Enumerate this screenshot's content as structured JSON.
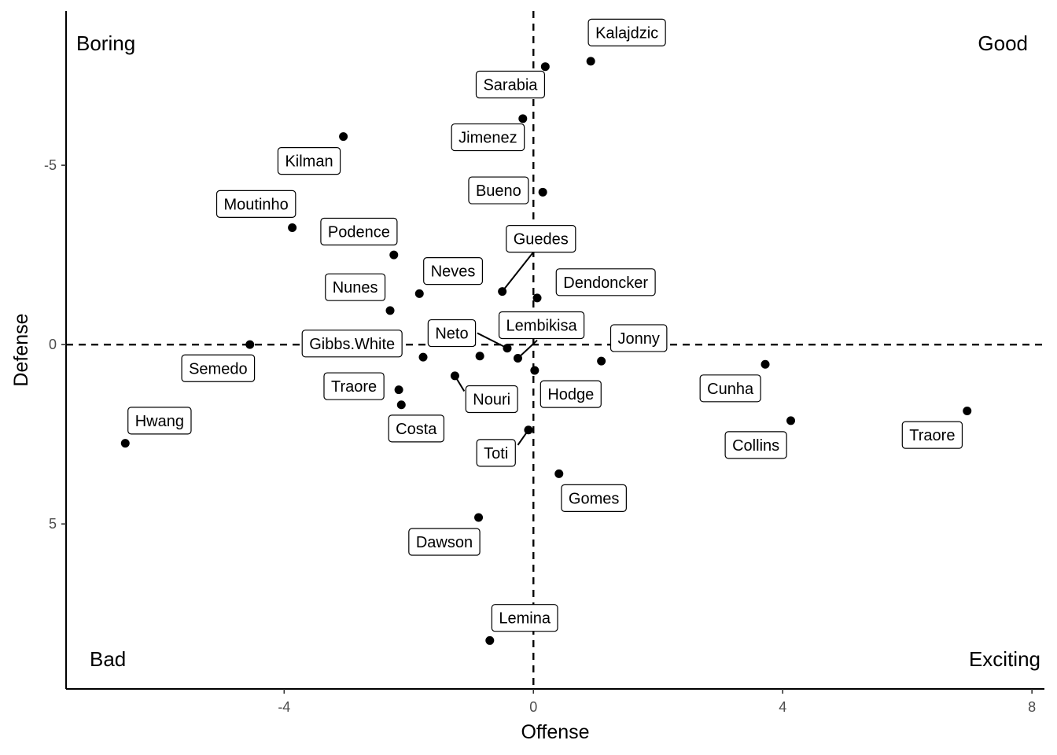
{
  "chart_data": {
    "type": "scatter",
    "title": "",
    "xlabel": "Offense",
    "ylabel": "Defense",
    "xlim": [
      -7.5,
      8.2
    ],
    "ylim": [
      -9.3,
      9.6
    ],
    "y_reversed": true,
    "x_ticks": [
      -4,
      0,
      4,
      8
    ],
    "x_tick_labels": [
      "-4",
      "0",
      "4",
      "8"
    ],
    "y_ticks": [
      -5,
      0,
      5
    ],
    "y_tick_labels": [
      "-5",
      "0",
      "5"
    ],
    "reference_lines": {
      "x": 0,
      "y": 0
    },
    "grid": false,
    "quadrant_labels": {
      "top_left": "Boring",
      "top_right": "Good",
      "bottom_left": "Bad",
      "bottom_right": "Exciting"
    },
    "points": [
      {
        "name": "Kalajdzic",
        "x": 0.92,
        "y": -7.9
      },
      {
        "name": "Sarabia",
        "x": 0.19,
        "y": -7.75
      },
      {
        "name": "Jimenez",
        "x": -0.17,
        "y": -6.3
      },
      {
        "name": "Kilman",
        "x": -3.05,
        "y": -5.8
      },
      {
        "name": "Bueno",
        "x": 0.15,
        "y": -4.25
      },
      {
        "name": "Moutinho",
        "x": -3.87,
        "y": -3.26
      },
      {
        "name": "Podence",
        "x": -2.24,
        "y": -2.5
      },
      {
        "name": "Guedes",
        "x": -0.5,
        "y": -1.48
      },
      {
        "name": "Neves",
        "x": -1.83,
        "y": -1.42
      },
      {
        "name": "Dendoncker",
        "x": 0.06,
        "y": -1.3
      },
      {
        "name": "Nunes",
        "x": -2.3,
        "y": -0.95
      },
      {
        "name": "Semedo",
        "x": -4.55,
        "y": 0.0
      },
      {
        "name": "Neto",
        "x": -0.42,
        "y": 0.1
      },
      {
        "name": "Lembikisa",
        "x": -0.25,
        "y": 0.38
      },
      {
        "name": "Gibbs.White",
        "x": -1.77,
        "y": 0.35
      },
      {
        "name": "Unlabeled",
        "x": -0.86,
        "y": 0.32
      },
      {
        "name": "Jonny",
        "x": 1.09,
        "y": 0.46
      },
      {
        "name": "Hodge",
        "x": 0.02,
        "y": 0.72
      },
      {
        "name": "Cunha",
        "x": 3.72,
        "y": 0.55
      },
      {
        "name": "Nouri",
        "x": -1.26,
        "y": 0.87
      },
      {
        "name": "Traore",
        "x": -2.16,
        "y": 1.26
      },
      {
        "name": "Costa",
        "x": -2.12,
        "y": 1.68
      },
      {
        "name": "Collins",
        "x": 4.13,
        "y": 2.12
      },
      {
        "name": "Traore",
        "x": 6.96,
        "y": 1.85
      },
      {
        "name": "Toti",
        "x": -0.08,
        "y": 2.38
      },
      {
        "name": "Hwang",
        "x": -6.55,
        "y": 2.75
      },
      {
        "name": "Gomes",
        "x": 0.41,
        "y": 3.6
      },
      {
        "name": "Dawson",
        "x": -0.88,
        "y": 4.82
      },
      {
        "name": "Lemina",
        "x": -0.7,
        "y": 8.25
      }
    ],
    "labels": [
      {
        "text": "Kalajdzic",
        "x": 1.5,
        "y": -8.7
      },
      {
        "text": "Sarabia",
        "x": -0.37,
        "y": -7.25
      },
      {
        "text": "Jimenez",
        "x": -0.73,
        "y": -5.78
      },
      {
        "text": "Kilman",
        "x": -3.6,
        "y": -5.12
      },
      {
        "text": "Bueno",
        "x": -0.56,
        "y": -4.3
      },
      {
        "text": "Moutinho",
        "x": -4.45,
        "y": -3.92
      },
      {
        "text": "Podence",
        "x": -2.8,
        "y": -3.15
      },
      {
        "text": "Guedes",
        "x": 0.12,
        "y": -2.95
      },
      {
        "text": "Neves",
        "x": -1.29,
        "y": -2.05
      },
      {
        "text": "Dendoncker",
        "x": 1.16,
        "y": -1.74
      },
      {
        "text": "Nunes",
        "x": -2.86,
        "y": -1.6
      },
      {
        "text": "Semedo",
        "x": -5.06,
        "y": 0.66
      },
      {
        "text": "Neto",
        "x": -1.31,
        "y": -0.32
      },
      {
        "text": "Lembikisa",
        "x": 0.13,
        "y": -0.54
      },
      {
        "text": "Gibbs.White",
        "x": -2.91,
        "y": -0.03
      },
      {
        "text": "Jonny",
        "x": 1.69,
        "y": -0.18
      },
      {
        "text": "Hodge",
        "x": 0.6,
        "y": 1.38
      },
      {
        "text": "Cunha",
        "x": 3.16,
        "y": 1.22
      },
      {
        "text": "Nouri",
        "x": -0.67,
        "y": 1.52
      },
      {
        "text": "Traore",
        "x": -2.88,
        "y": 1.16
      },
      {
        "text": "Costa",
        "x": -1.88,
        "y": 2.34
      },
      {
        "text": "Collins",
        "x": 3.57,
        "y": 2.8
      },
      {
        "text": "Traore",
        "x": 6.4,
        "y": 2.52
      },
      {
        "text": "Toti",
        "x": -0.6,
        "y": 3.02
      },
      {
        "text": "Hwang",
        "x": -6.0,
        "y": 2.12
      },
      {
        "text": "Gomes",
        "x": 0.97,
        "y": 4.28
      },
      {
        "text": "Dawson",
        "x": -1.43,
        "y": 5.5
      },
      {
        "text": "Lemina",
        "x": -0.14,
        "y": 7.62
      }
    ],
    "leader_lines": [
      {
        "from": [
          -0.5,
          -1.48
        ],
        "to": [
          0.0,
          -2.58
        ]
      },
      {
        "from": [
          -0.42,
          0.1
        ],
        "to": [
          -0.9,
          -0.32
        ]
      },
      {
        "from": [
          -0.25,
          0.38
        ],
        "to": [
          0.06,
          -0.12
        ]
      },
      {
        "from": [
          -1.26,
          0.87
        ],
        "to": [
          -1.11,
          1.3
        ]
      },
      {
        "from": [
          -0.08,
          2.38
        ],
        "to": [
          -0.25,
          2.8
        ]
      }
    ]
  }
}
